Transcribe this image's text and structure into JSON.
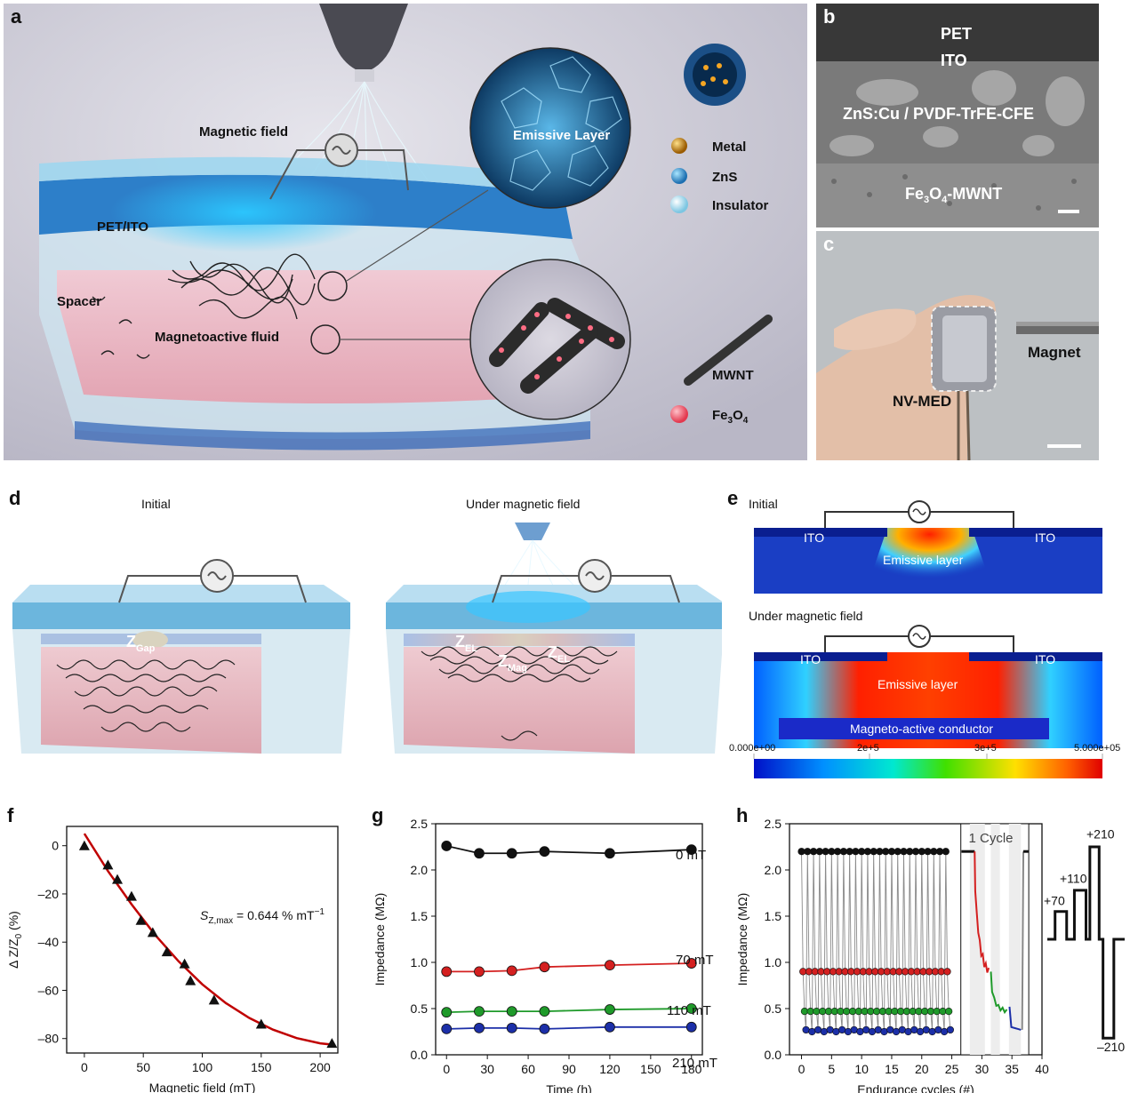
{
  "panel_labels": {
    "a": "a",
    "b": "b",
    "c": "c",
    "d": "d",
    "e": "e",
    "f": "f",
    "g": "g",
    "h": "h"
  },
  "panel_a": {
    "magnetic_field": "Magnetic field",
    "pet_ito": "PET/ITO",
    "spacer": "Spacer",
    "magnetoactive_fluid": "Magnetoactive fluid",
    "emissive_layer": "Emissive Layer",
    "legend": [
      "Metal",
      "ZnS",
      "Insulator"
    ],
    "mwnt": "MWNT",
    "fe3o4_base": "Fe",
    "fe3o4_sub1": "3",
    "fe3o4_mid": "O",
    "fe3o4_sub2": "4"
  },
  "panel_b": {
    "pet": "PET",
    "ito": "ITO",
    "layer": "ZnS:Cu / PVDF-TrFE-CFE",
    "bottom_base": "Fe",
    "bottom_sub1": "3",
    "bottom_mid": "O",
    "bottom_sub2": "4",
    "bottom_tail": "-MWNT"
  },
  "panel_c": {
    "magnet": "Magnet",
    "device": "NV-MED"
  },
  "panel_d": {
    "initial": "Initial",
    "under": "Under magnetic field",
    "z": "Z",
    "gap": "Gap",
    "el": "EL",
    "mag": "Mag"
  },
  "panel_e": {
    "initial": "Initial",
    "under": "Under magnetic field",
    "ito": "ITO",
    "emissive": "Emissive layer",
    "conductor": "Magneto-active conductor",
    "scale_ticks": [
      "0.000e+00",
      "2e+5",
      "3e+5",
      "5.000e+05"
    ]
  },
  "colors": {
    "red_fit": "#c00000",
    "s0": "#111111",
    "s70": "#d42020",
    "s110": "#1f9a2a",
    "s210": "#1c2fa8",
    "grid_gray": "#999999"
  },
  "chart_data": [
    {
      "id": "f",
      "type": "scatter",
      "xlabel": "Magnetic field (mT)",
      "ylabel_parts": [
        "Δ Z/Z",
        "0",
        " (%)"
      ],
      "xlim": [
        -15,
        215
      ],
      "ylim": [
        -86,
        8
      ],
      "xticks": [
        0,
        50,
        100,
        150,
        200
      ],
      "yticks": [
        0,
        -20,
        -40,
        -60,
        -80
      ],
      "ytick_labels": [
        "0",
        "–20",
        "–40",
        "–60",
        "–80"
      ],
      "points_x": [
        0,
        20,
        28,
        40,
        48,
        58,
        70,
        85,
        90,
        110,
        150,
        210
      ],
      "points_y": [
        0,
        -8,
        -14,
        -21,
        -31,
        -36,
        -44,
        -49,
        -56,
        -64,
        -74,
        -82
      ],
      "fit_x": [
        0,
        20,
        40,
        60,
        80,
        100,
        120,
        140,
        160,
        180,
        200,
        210
      ],
      "fit_y": [
        5,
        -10.5,
        -24.3,
        -37,
        -48,
        -57.5,
        -65.3,
        -71.5,
        -76.3,
        -79.8,
        -82,
        -82.5
      ],
      "annotation": {
        "s": "S",
        "sub": "Z,max",
        "rest": " = 0.644 % mT",
        "sup": "−1"
      }
    },
    {
      "id": "g",
      "type": "line",
      "xlabel": "Time (h)",
      "ylabel": "Impedance (MΩ)",
      "xlim": [
        -8,
        188
      ],
      "ylim": [
        0,
        2.5
      ],
      "xticks": [
        0,
        30,
        60,
        90,
        120,
        150,
        180
      ],
      "yticks": [
        0.0,
        0.5,
        1.0,
        1.5,
        2.0,
        2.5
      ],
      "ytick_labels": [
        "0.0",
        "0.5",
        "1.0",
        "1.5",
        "2.0",
        "2.5"
      ],
      "x": [
        0,
        24,
        48,
        72,
        120,
        180
      ],
      "series": [
        {
          "name": "0 mT",
          "values": [
            2.26,
            2.18,
            2.18,
            2.2,
            2.18,
            2.22
          ]
        },
        {
          "name": "70 mT",
          "values": [
            0.9,
            0.9,
            0.91,
            0.95,
            0.97,
            0.99
          ]
        },
        {
          "name": "110 mT",
          "values": [
            0.46,
            0.47,
            0.47,
            0.47,
            0.49,
            0.5
          ]
        },
        {
          "name": "210 mT",
          "values": [
            0.28,
            0.29,
            0.29,
            0.28,
            0.3,
            0.3
          ]
        }
      ]
    },
    {
      "id": "h",
      "type": "line",
      "xlabel": "Endurance cycles (#)",
      "ylabel": "Impedance (MΩ)",
      "xlim": [
        -2,
        40
      ],
      "ylim": [
        0,
        2.5
      ],
      "xticks": [
        0,
        5,
        10,
        15,
        20,
        25,
        30,
        35,
        40
      ],
      "yticks": [
        0.0,
        0.5,
        1.0,
        1.5,
        2.0,
        2.5
      ],
      "ytick_labels": [
        "0.0",
        "0.5",
        "1.0",
        "1.5",
        "2.0",
        "2.5"
      ],
      "cycles": 25,
      "levels": [
        {
          "name": "0 mT",
          "value": 2.2
        },
        {
          "name": "70 mT",
          "value": 0.9
        },
        {
          "name": "110 mT",
          "value": 0.47
        },
        {
          "name": "210 mT",
          "value": 0.27
        }
      ],
      "inset_title": "1 Cycle",
      "field_steps": [
        "+70",
        "+110",
        "+210",
        "–210"
      ]
    }
  ]
}
